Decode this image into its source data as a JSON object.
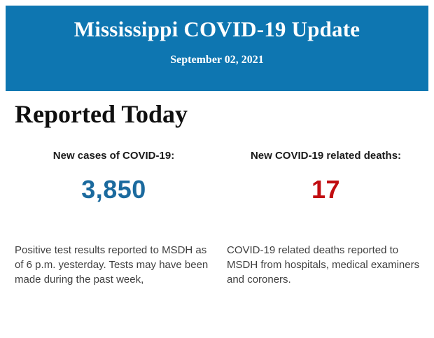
{
  "header": {
    "bg_color": "#0e76b1",
    "text_color": "#ffffff",
    "title": "Mississippi COVID-19 Update",
    "date": "September 02, 2021"
  },
  "main": {
    "section_title": "Reported Today",
    "columns": [
      {
        "label": "New cases of COVID-19:",
        "value": "3,850",
        "value_color": "#1b6a9e",
        "description": "Positive test results reported to MSDH as of 6 p.m. yesterday. Tests may have been made during the past week,"
      },
      {
        "label": "New COVID-19 related deaths:",
        "value": "17",
        "value_color": "#c10d11",
        "description": "COVID-19 related deaths reported to MSDH from hospitals, medical examiners and coroners."
      }
    ]
  }
}
